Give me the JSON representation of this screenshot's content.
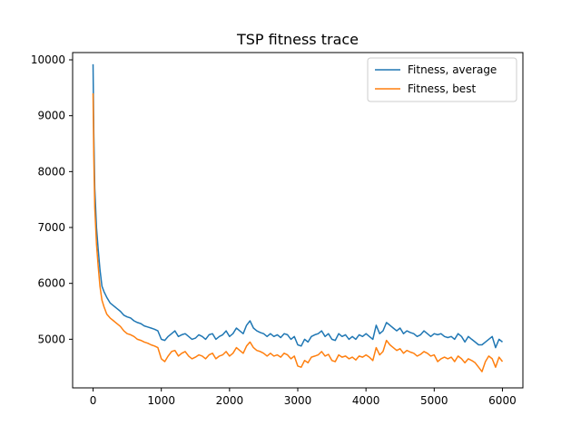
{
  "chart_data": {
    "type": "line",
    "title": "TSP fitness trace",
    "xlabel": "",
    "ylabel": "",
    "xlim": [
      -300,
      6300
    ],
    "ylim": [
      4130,
      10130
    ],
    "xticks": [
      0,
      1000,
      2000,
      3000,
      4000,
      5000,
      6000
    ],
    "yticks": [
      5000,
      6000,
      7000,
      8000,
      9000,
      10000
    ],
    "grid": false,
    "legend_position": "top-right",
    "series": [
      {
        "name": "Fitness, average",
        "color": "#1f77b4",
        "x": [
          0,
          10,
          25,
          50,
          75,
          100,
          130,
          160,
          200,
          250,
          300,
          350,
          400,
          450,
          500,
          550,
          600,
          650,
          700,
          750,
          800,
          850,
          900,
          950,
          1000,
          1050,
          1100,
          1150,
          1200,
          1250,
          1300,
          1350,
          1400,
          1450,
          1500,
          1550,
          1600,
          1650,
          1700,
          1750,
          1800,
          1850,
          1900,
          1950,
          2000,
          2050,
          2100,
          2150,
          2200,
          2250,
          2300,
          2350,
          2400,
          2450,
          2500,
          2550,
          2600,
          2650,
          2700,
          2750,
          2800,
          2850,
          2900,
          2950,
          3000,
          3050,
          3100,
          3150,
          3200,
          3250,
          3300,
          3350,
          3400,
          3450,
          3500,
          3550,
          3600,
          3650,
          3700,
          3750,
          3800,
          3850,
          3900,
          3950,
          4000,
          4050,
          4100,
          4150,
          4200,
          4250,
          4300,
          4350,
          4400,
          4450,
          4500,
          4550,
          4600,
          4650,
          4700,
          4750,
          4800,
          4850,
          4900,
          4950,
          5000,
          5050,
          5100,
          5150,
          5200,
          5250,
          5300,
          5350,
          5400,
          5450,
          5500,
          5550,
          5600,
          5650,
          5700,
          5750,
          5800,
          5850,
          5900,
          5950,
          6000
        ],
        "y": [
          9920,
          8700,
          7700,
          7000,
          6600,
          6250,
          5950,
          5850,
          5750,
          5650,
          5600,
          5550,
          5500,
          5430,
          5400,
          5380,
          5330,
          5300,
          5280,
          5240,
          5220,
          5200,
          5180,
          5150,
          5000,
          4980,
          5050,
          5100,
          5150,
          5050,
          5080,
          5100,
          5050,
          5000,
          5020,
          5080,
          5050,
          5000,
          5080,
          5100,
          5000,
          5050,
          5080,
          5150,
          5050,
          5100,
          5200,
          5150,
          5100,
          5250,
          5330,
          5200,
          5150,
          5120,
          5100,
          5050,
          5100,
          5050,
          5080,
          5030,
          5100,
          5080,
          5000,
          5050,
          4900,
          4880,
          5000,
          4950,
          5050,
          5080,
          5100,
          5150,
          5050,
          5100,
          5000,
          4980,
          5100,
          5050,
          5080,
          5000,
          5050,
          5000,
          5080,
          5050,
          5100,
          5050,
          5000,
          5250,
          5100,
          5150,
          5300,
          5250,
          5200,
          5150,
          5200,
          5100,
          5150,
          5120,
          5100,
          5050,
          5080,
          5150,
          5100,
          5050,
          5100,
          5080,
          5100,
          5050,
          5030,
          5050,
          5000,
          5100,
          5050,
          4950,
          5050,
          5000,
          4950,
          4900,
          4900,
          4950,
          5000,
          5050,
          4850,
          5000,
          4950
        ]
      },
      {
        "name": "Fitness, best",
        "color": "#ff7f0e",
        "x": [
          0,
          10,
          25,
          50,
          75,
          100,
          130,
          160,
          200,
          250,
          300,
          350,
          400,
          450,
          500,
          550,
          600,
          650,
          700,
          750,
          800,
          850,
          900,
          950,
          1000,
          1050,
          1100,
          1150,
          1200,
          1250,
          1300,
          1350,
          1400,
          1450,
          1500,
          1550,
          1600,
          1650,
          1700,
          1750,
          1800,
          1850,
          1900,
          1950,
          2000,
          2050,
          2100,
          2150,
          2200,
          2250,
          2300,
          2350,
          2400,
          2450,
          2500,
          2550,
          2600,
          2650,
          2700,
          2750,
          2800,
          2850,
          2900,
          2950,
          3000,
          3050,
          3100,
          3150,
          3200,
          3250,
          3300,
          3350,
          3400,
          3450,
          3500,
          3550,
          3600,
          3650,
          3700,
          3750,
          3800,
          3850,
          3900,
          3950,
          4000,
          4050,
          4100,
          4150,
          4200,
          4250,
          4300,
          4350,
          4400,
          4450,
          4500,
          4550,
          4600,
          4650,
          4700,
          4750,
          4800,
          4850,
          4900,
          4950,
          5000,
          5050,
          5100,
          5150,
          5200,
          5250,
          5300,
          5350,
          5400,
          5450,
          5500,
          5550,
          5600,
          5650,
          5700,
          5750,
          5800,
          5850,
          5900,
          5950,
          6000
        ],
        "y": [
          9400,
          8300,
          7350,
          6700,
          6300,
          5950,
          5700,
          5580,
          5450,
          5380,
          5330,
          5280,
          5230,
          5150,
          5100,
          5080,
          5050,
          5000,
          4980,
          4950,
          4930,
          4900,
          4880,
          4850,
          4650,
          4600,
          4700,
          4780,
          4800,
          4700,
          4750,
          4780,
          4700,
          4650,
          4680,
          4720,
          4700,
          4650,
          4720,
          4750,
          4650,
          4700,
          4720,
          4780,
          4700,
          4750,
          4850,
          4800,
          4750,
          4880,
          4950,
          4850,
          4800,
          4780,
          4750,
          4700,
          4750,
          4700,
          4720,
          4680,
          4750,
          4720,
          4650,
          4700,
          4520,
          4500,
          4620,
          4580,
          4680,
          4700,
          4720,
          4780,
          4700,
          4730,
          4620,
          4600,
          4720,
          4680,
          4700,
          4650,
          4680,
          4630,
          4700,
          4680,
          4720,
          4680,
          4620,
          4850,
          4720,
          4780,
          4980,
          4900,
          4850,
          4800,
          4830,
          4750,
          4800,
          4770,
          4750,
          4700,
          4730,
          4780,
          4750,
          4700,
          4720,
          4600,
          4650,
          4680,
          4650,
          4680,
          4600,
          4700,
          4650,
          4580,
          4650,
          4620,
          4580,
          4500,
          4420,
          4600,
          4700,
          4650,
          4500,
          4680,
          4600
        ]
      }
    ]
  }
}
